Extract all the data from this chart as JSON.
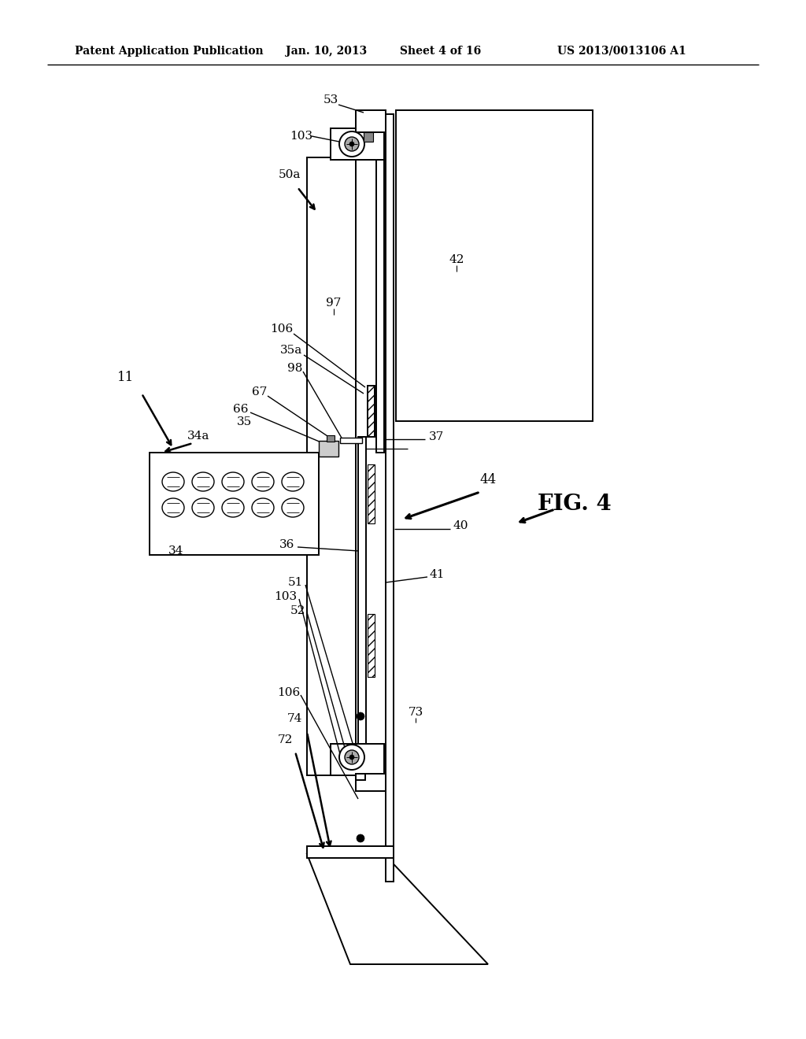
{
  "bg_color": "#ffffff",
  "header_text": "Patent Application Publication",
  "header_date": "Jan. 10, 2013",
  "header_sheet": "Sheet 4 of 16",
  "header_patent": "US 2013/0013106 A1",
  "fig_label": "FIG. 4",
  "lw": 1.4,
  "lw_thin": 0.9
}
